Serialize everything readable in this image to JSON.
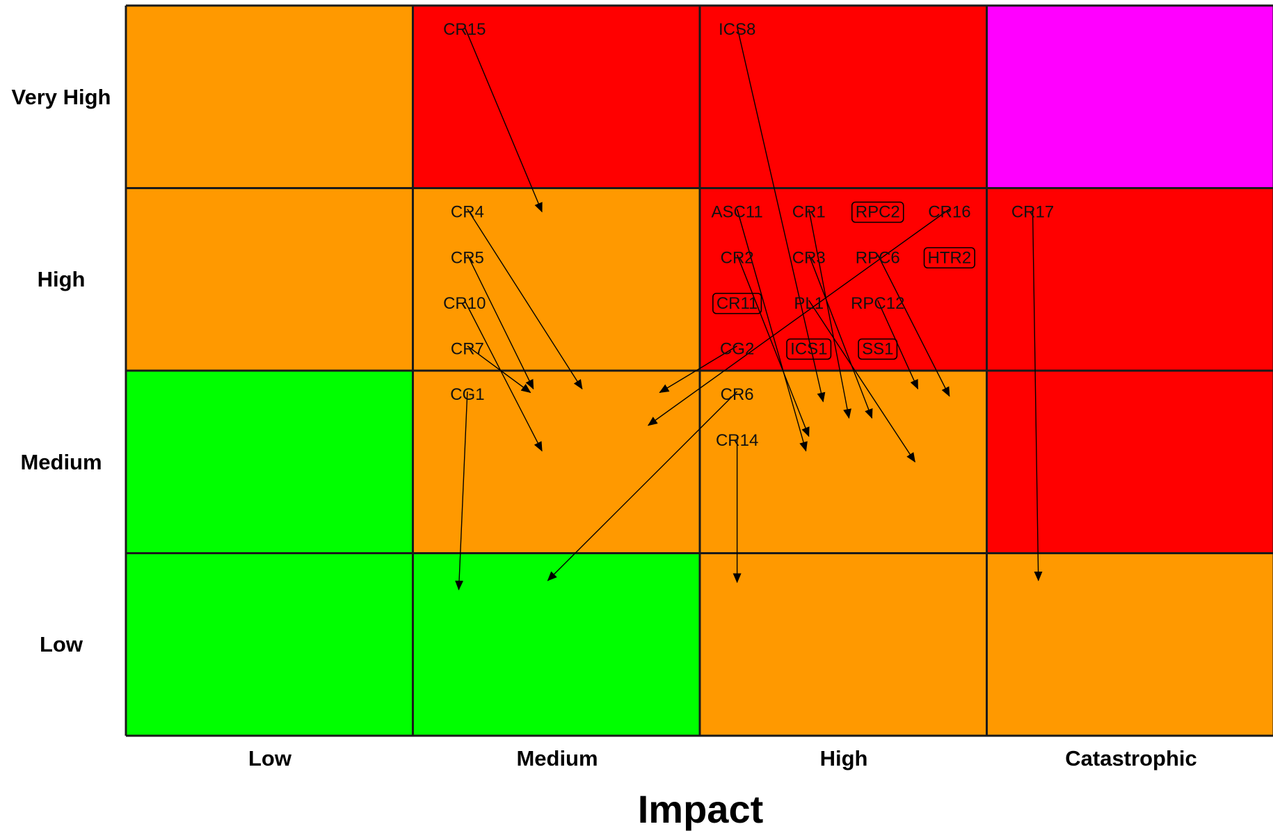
{
  "chart_data": {
    "type": "heatmap",
    "title": "",
    "xlabel": "Impact",
    "ylabel": "",
    "x_categories": [
      "Low",
      "Medium",
      "High",
      "Catastrophic"
    ],
    "y_categories": [
      "Very High",
      "High",
      "Medium",
      "Low"
    ],
    "cell_colors": [
      [
        "#FF9900",
        "#FF0000",
        "#FF0000",
        "#FF00FF"
      ],
      [
        "#FF9900",
        "#FF9900",
        "#FF0000",
        "#FF0000"
      ],
      [
        "#00FF00",
        "#FF9900",
        "#FF9900",
        "#FF0000"
      ],
      [
        "#00FF00",
        "#00FF00",
        "#FF9900",
        "#FF9900"
      ]
    ],
    "colors": {
      "amber": "#FF9900",
      "red": "#FF0000",
      "magenta": "#FF00FF",
      "green": "#00FF00",
      "grid": "#1a1a1a"
    },
    "risks": [
      {
        "id": "CR15",
        "boxed": false,
        "from": {
          "impact": 1.18,
          "likelihood": 0.13
        },
        "to": {
          "impact": 1.45,
          "likelihood": 1.13
        }
      },
      {
        "id": "ICS8",
        "boxed": false,
        "from": {
          "impact": 2.13,
          "likelihood": 0.13
        },
        "to": {
          "impact": 2.43,
          "likelihood": 2.17
        }
      },
      {
        "id": "CR4",
        "boxed": false,
        "from": {
          "impact": 1.19,
          "likelihood": 1.13
        },
        "to": {
          "impact": 1.59,
          "likelihood": 2.1
        }
      },
      {
        "id": "CR5",
        "boxed": false,
        "from": {
          "impact": 1.19,
          "likelihood": 1.38
        },
        "to": {
          "impact": 1.42,
          "likelihood": 2.1
        }
      },
      {
        "id": "CR10",
        "boxed": false,
        "from": {
          "impact": 1.18,
          "likelihood": 1.63
        },
        "to": {
          "impact": 1.45,
          "likelihood": 2.44
        }
      },
      {
        "id": "CR7",
        "boxed": false,
        "from": {
          "impact": 1.19,
          "likelihood": 1.88
        },
        "to": {
          "impact": 1.41,
          "likelihood": 2.12
        }
      },
      {
        "id": "CG1",
        "boxed": false,
        "from": {
          "impact": 1.19,
          "likelihood": 2.13
        },
        "to": {
          "impact": 1.16,
          "likelihood": 3.2
        }
      },
      {
        "id": "ASC11",
        "boxed": false,
        "from": {
          "impact": 2.13,
          "likelihood": 1.13
        },
        "to": {
          "impact": 2.37,
          "likelihood": 2.44
        }
      },
      {
        "id": "CR1",
        "boxed": false,
        "from": {
          "impact": 2.38,
          "likelihood": 1.13
        },
        "to": {
          "impact": 2.52,
          "likelihood": 2.26
        }
      },
      {
        "id": "RPC2",
        "boxed": true,
        "from": {
          "impact": 2.62,
          "likelihood": 1.13
        },
        "to": null
      },
      {
        "id": "CR16",
        "boxed": false,
        "from": {
          "impact": 2.87,
          "likelihood": 1.13
        },
        "to": {
          "impact": 1.82,
          "likelihood": 2.3
        }
      },
      {
        "id": "CR17",
        "boxed": false,
        "from": {
          "impact": 3.16,
          "likelihood": 1.13
        },
        "to": {
          "impact": 3.18,
          "likelihood": 3.15
        }
      },
      {
        "id": "CR2",
        "boxed": false,
        "from": {
          "impact": 2.13,
          "likelihood": 1.38
        },
        "to": {
          "impact": 2.38,
          "likelihood": 2.36
        }
      },
      {
        "id": "CR3",
        "boxed": false,
        "from": {
          "impact": 2.38,
          "likelihood": 1.38
        },
        "to": {
          "impact": 2.6,
          "likelihood": 2.26
        }
      },
      {
        "id": "RPC6",
        "boxed": false,
        "from": {
          "impact": 2.62,
          "likelihood": 1.38
        },
        "to": {
          "impact": 2.87,
          "likelihood": 2.14
        }
      },
      {
        "id": "HTR2",
        "boxed": true,
        "from": {
          "impact": 2.87,
          "likelihood": 1.38
        },
        "to": null
      },
      {
        "id": "CR11",
        "boxed": true,
        "from": {
          "impact": 2.13,
          "likelihood": 1.63
        },
        "to": null
      },
      {
        "id": "PL1",
        "boxed": false,
        "from": {
          "impact": 2.38,
          "likelihood": 1.63
        },
        "to": {
          "impact": 2.75,
          "likelihood": 2.5
        }
      },
      {
        "id": "RPC12",
        "boxed": false,
        "from": {
          "impact": 2.62,
          "likelihood": 1.63
        },
        "to": {
          "impact": 2.76,
          "likelihood": 2.1
        }
      },
      {
        "id": "CG2",
        "boxed": false,
        "from": {
          "impact": 2.13,
          "likelihood": 1.88
        },
        "to": {
          "impact": 1.86,
          "likelihood": 2.12
        }
      },
      {
        "id": "ICS1",
        "boxed": true,
        "from": {
          "impact": 2.38,
          "likelihood": 1.88
        },
        "to": null
      },
      {
        "id": "SS1",
        "boxed": true,
        "from": {
          "impact": 2.62,
          "likelihood": 1.88
        },
        "to": null
      },
      {
        "id": "CR6",
        "boxed": false,
        "from": {
          "impact": 2.13,
          "likelihood": 2.13
        },
        "to": {
          "impact": 1.47,
          "likelihood": 3.15
        }
      },
      {
        "id": "CR14",
        "boxed": false,
        "from": {
          "impact": 2.13,
          "likelihood": 2.38
        },
        "to": {
          "impact": 2.13,
          "likelihood": 3.16
        }
      }
    ]
  }
}
